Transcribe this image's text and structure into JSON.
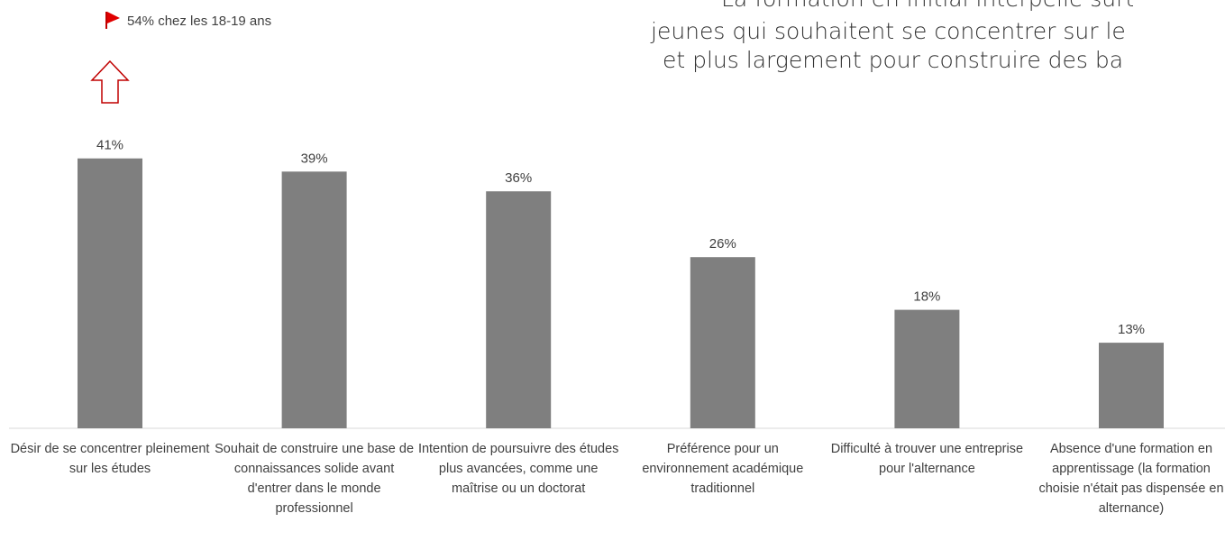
{
  "header": {
    "lines": [
      "La formation en initial interpelle surt",
      "jeunes qui souhaitent se concentrer sur le",
      "et plus largement pour construire des ba"
    ]
  },
  "chart_data": {
    "type": "bar",
    "annotation": "54% chez les 18-19 ans",
    "categories": [
      "Désir de se concentrer pleinement sur les études",
      "Souhait de construire une base de connaissances solide avant d'entrer dans le monde professionnel",
      "Intention de poursuivre des études plus avancées, comme une maîtrise ou un doctorat",
      "Préférence pour un environnement académique traditionnel",
      "Difficulté à trouver une entreprise pour l'alternance",
      "Absence d'une formation en apprentissage (la formation choisie n'était pas dispensée en alternance)"
    ],
    "values": [
      41,
      39,
      36,
      26,
      18,
      13
    ],
    "value_labels": [
      "41%",
      "39%",
      "36%",
      "26%",
      "18%",
      "13%"
    ],
    "color": "#7f7f7f"
  }
}
